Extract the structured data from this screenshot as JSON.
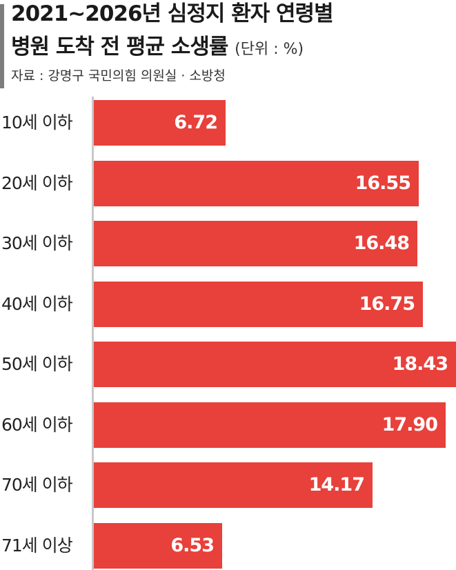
{
  "header": {
    "title_line1": "2021~2026년 심정지 환자 연령별",
    "title_line2": "병원 도착 전 평균 소생률",
    "unit": "(단위 : %)",
    "source": "자료 : 강명구 국민의힘 의원실 · 소방청"
  },
  "colors": {
    "bar": "#e8403a",
    "axis": "#c8c8c8",
    "accent": "#7d7d7d"
  },
  "chart_data": {
    "type": "bar",
    "orientation": "horizontal",
    "title": "2021~2026년 심정지 환자 연령별 병원 도착 전 평균 소생률",
    "unit": "%",
    "categories": [
      "10세 이하",
      "20세 이하",
      "30세 이하",
      "40세 이하",
      "50세 이하",
      "60세 이하",
      "70세 이하",
      "71세 이상"
    ],
    "values": [
      6.72,
      16.55,
      16.48,
      16.75,
      18.43,
      17.9,
      14.17,
      6.53
    ],
    "value_labels": [
      "6.72",
      "16.55",
      "16.48",
      "16.75",
      "18.43",
      "17.90",
      "14.17",
      "6.53"
    ],
    "xlim": [
      0,
      18.43
    ],
    "grid": false,
    "legend": "none"
  }
}
